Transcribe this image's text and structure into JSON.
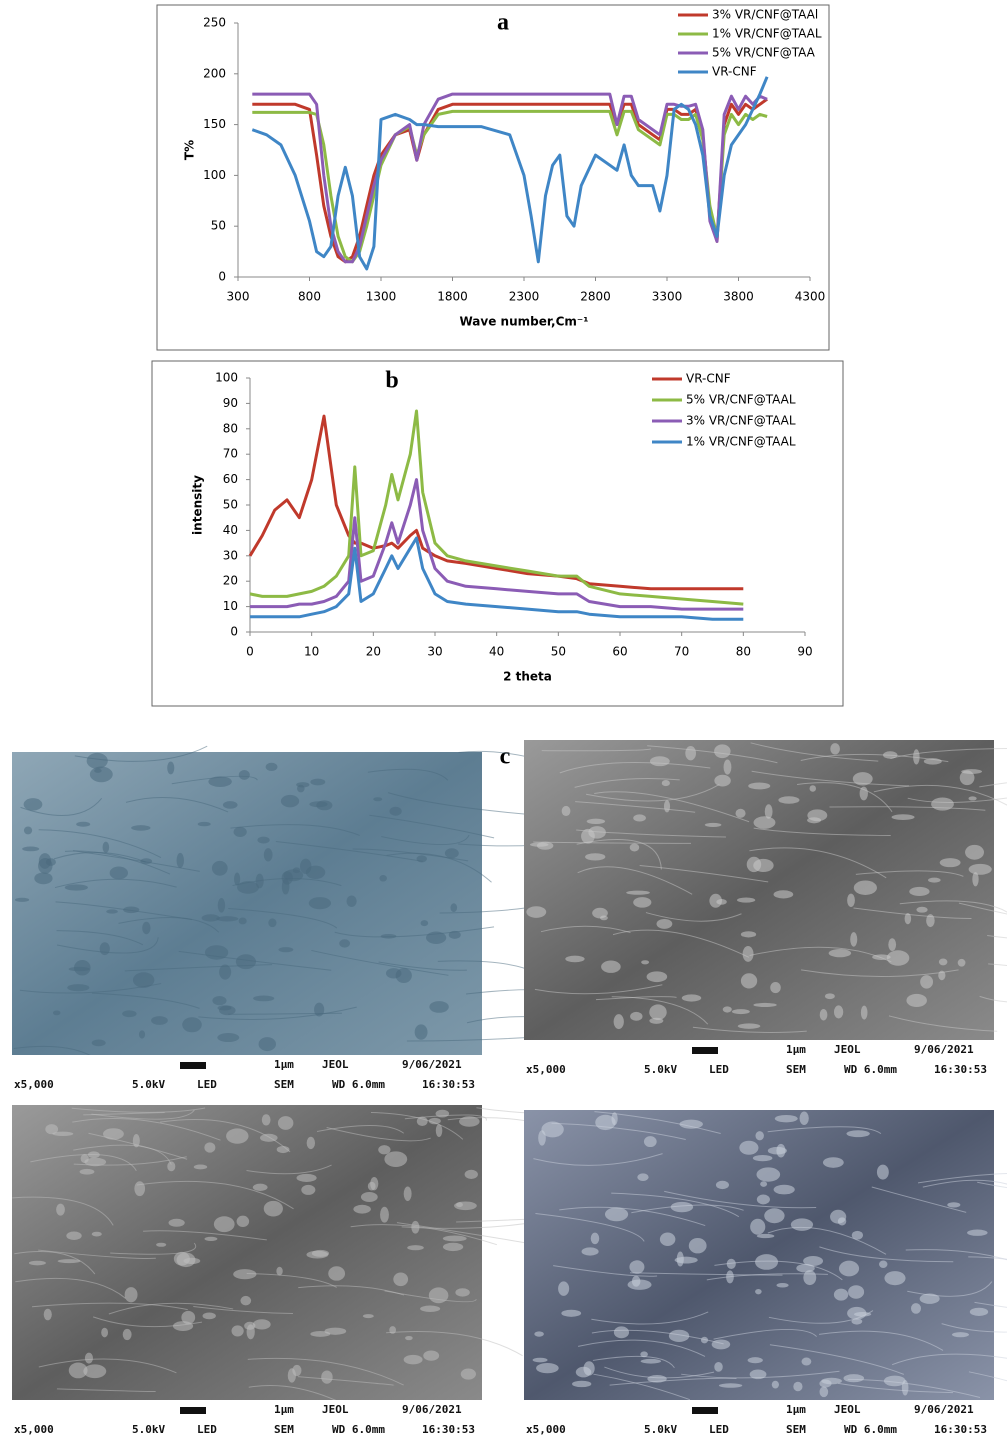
{
  "chart_data": [
    {
      "type": "line",
      "title": "a",
      "x_label": "Wave number,Cm⁻¹",
      "y_label": "T%",
      "x": [
        400,
        500,
        600,
        700,
        800,
        850,
        900,
        950,
        1000,
        1050,
        1100,
        1150,
        1200,
        1250,
        1300,
        1400,
        1500,
        1550,
        1600,
        1700,
        1800,
        2000,
        2200,
        2300,
        2350,
        2400,
        2450,
        2500,
        2550,
        2600,
        2650,
        2700,
        2800,
        2900,
        2950,
        3000,
        3050,
        3100,
        3200,
        3250,
        3300,
        3350,
        3400,
        3450,
        3500,
        3550,
        3600,
        3650,
        3700,
        3750,
        3800,
        3850,
        3900,
        3950,
        4000
      ],
      "series": [
        {
          "name": "3% VR/CNF@TAAl",
          "color": "#c0392b",
          "values": [
            170,
            170,
            170,
            170,
            165,
            120,
            70,
            40,
            20,
            15,
            20,
            40,
            70,
            100,
            120,
            140,
            145,
            115,
            140,
            165,
            170,
            170,
            170,
            170,
            170,
            170,
            170,
            170,
            170,
            170,
            170,
            170,
            170,
            170,
            150,
            170,
            170,
            150,
            140,
            135,
            165,
            165,
            160,
            160,
            165,
            140,
            60,
            35,
            150,
            170,
            160,
            170,
            165,
            170,
            175
          ]
        },
        {
          "name": "1% VR/CNF@TAAL",
          "color": "#8dba45",
          "values": [
            162,
            162,
            162,
            162,
            162,
            160,
            130,
            80,
            40,
            20,
            15,
            25,
            50,
            80,
            110,
            140,
            148,
            120,
            140,
            160,
            163,
            163,
            163,
            163,
            163,
            163,
            163,
            163,
            163,
            163,
            163,
            163,
            163,
            163,
            140,
            163,
            163,
            145,
            135,
            130,
            160,
            160,
            155,
            155,
            160,
            135,
            70,
            40,
            140,
            160,
            150,
            160,
            155,
            160,
            158
          ]
        },
        {
          "name": "5% VR/CNF@TAA",
          "color": "#8b5cb5",
          "values": [
            180,
            180,
            180,
            180,
            180,
            170,
            100,
            50,
            25,
            15,
            15,
            30,
            60,
            90,
            115,
            140,
            150,
            115,
            150,
            175,
            180,
            180,
            180,
            180,
            180,
            180,
            180,
            180,
            180,
            180,
            180,
            180,
            180,
            180,
            150,
            178,
            178,
            155,
            145,
            140,
            170,
            170,
            168,
            168,
            170,
            145,
            55,
            35,
            160,
            178,
            165,
            178,
            170,
            178,
            175
          ]
        },
        {
          "name": "VR-CNF",
          "color": "#3f86c6",
          "values": [
            145,
            140,
            130,
            100,
            55,
            25,
            20,
            30,
            80,
            108,
            80,
            20,
            8,
            30,
            155,
            160,
            155,
            150,
            150,
            148,
            148,
            148,
            140,
            100,
            60,
            15,
            80,
            110,
            120,
            60,
            50,
            90,
            120,
            110,
            105,
            130,
            100,
            90,
            90,
            65,
            100,
            165,
            170,
            165,
            150,
            120,
            60,
            40,
            100,
            130,
            140,
            150,
            165,
            180,
            197
          ]
        }
      ],
      "xlim": [
        300,
        4300
      ],
      "xticks": [
        300,
        800,
        1300,
        1800,
        2300,
        2800,
        3300,
        3800,
        4300
      ],
      "ylim": [
        0,
        250
      ],
      "yticks": [
        0,
        50,
        100,
        150,
        200,
        250
      ],
      "grid": false,
      "legend": "top-right"
    },
    {
      "type": "line",
      "title": "b",
      "x_label": "2 theta",
      "y_label": "intensity",
      "x": [
        0,
        2,
        4,
        6,
        8,
        10,
        12,
        14,
        16,
        17,
        18,
        20,
        22,
        23,
        24,
        26,
        27,
        28,
        30,
        32,
        35,
        40,
        45,
        50,
        53,
        55,
        60,
        65,
        70,
        75,
        80
      ],
      "series": [
        {
          "name": "VR-CNF",
          "color": "#c0392b",
          "values": [
            30,
            38,
            48,
            52,
            45,
            60,
            85,
            50,
            38,
            35,
            35,
            33,
            34,
            35,
            33,
            38,
            40,
            33,
            30,
            28,
            27,
            25,
            23,
            22,
            21,
            19,
            18,
            17,
            17,
            17,
            17
          ]
        },
        {
          "name": "5% VR/CNF@TAAL",
          "color": "#8dba45",
          "values": [
            15,
            14,
            14,
            14,
            15,
            16,
            18,
            22,
            30,
            65,
            30,
            32,
            50,
            62,
            52,
            70,
            87,
            55,
            35,
            30,
            28,
            26,
            24,
            22,
            22,
            18,
            15,
            14,
            13,
            12,
            11
          ]
        },
        {
          "name": "3% VR/CNF@TAAL",
          "color": "#8b5cb5",
          "values": [
            10,
            10,
            10,
            10,
            11,
            11,
            12,
            14,
            20,
            45,
            20,
            22,
            35,
            43,
            35,
            50,
            60,
            40,
            25,
            20,
            18,
            17,
            16,
            15,
            15,
            12,
            10,
            10,
            9,
            9,
            9
          ]
        },
        {
          "name": "1% VR/CNF@TAAL",
          "color": "#3f86c6",
          "values": [
            6,
            6,
            6,
            6,
            6,
            7,
            8,
            10,
            15,
            33,
            12,
            15,
            25,
            30,
            25,
            33,
            37,
            25,
            15,
            12,
            11,
            10,
            9,
            8,
            8,
            7,
            6,
            6,
            6,
            5,
            5
          ]
        }
      ],
      "xlim": [
        0,
        90
      ],
      "xticks": [
        0,
        10,
        20,
        30,
        40,
        50,
        60,
        70,
        80,
        90
      ],
      "ylim": [
        0,
        100
      ],
      "yticks": [
        0,
        10,
        20,
        30,
        40,
        50,
        60,
        70,
        80,
        90,
        100
      ],
      "grid": false,
      "legend": "top-right"
    }
  ],
  "panel_c": {
    "label": "c",
    "images": [
      {
        "scale": "1μm",
        "maker": "JEOL",
        "date": "9/06/2021",
        "magnification": "x5,000",
        "voltage": "5.0kV",
        "detector": "LED",
        "mode": "SEM",
        "working_distance": "WD 6.0mm",
        "time": "16:30:53"
      },
      {
        "scale": "1μm",
        "maker": "JEOL",
        "date": "9/06/2021",
        "magnification": "x5,000",
        "voltage": "5.0kV",
        "detector": "LED",
        "mode": "SEM",
        "working_distance": "WD 6.0mm",
        "time": "16:30:53"
      },
      {
        "scale": "1μm",
        "maker": "JEOL",
        "date": "9/06/2021",
        "magnification": "x5,000",
        "voltage": "5.0kV",
        "detector": "LED",
        "mode": "SEM",
        "working_distance": "WD 6.0mm",
        "time": "16:30:53"
      },
      {
        "scale": "1μm",
        "maker": "JEOL",
        "date": "9/06/2021",
        "magnification": "x5,000",
        "voltage": "5.0kV",
        "detector": "LED",
        "mode": "SEM",
        "working_distance": "WD 6.0mm",
        "time": "16:30:53"
      }
    ]
  }
}
